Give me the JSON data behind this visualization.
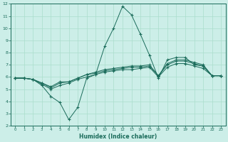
{
  "xlabel": "Humidex (Indice chaleur)",
  "ylabel": "",
  "background_color": "#cceee8",
  "grid_color": "#aaddcc",
  "line_color": "#1a6b5a",
  "x_values": [
    0,
    1,
    2,
    3,
    4,
    5,
    6,
    7,
    8,
    9,
    10,
    11,
    12,
    13,
    14,
    15,
    16,
    17,
    18,
    19,
    20,
    21,
    22,
    23
  ],
  "line1": [
    5.9,
    5.9,
    5.8,
    5.3,
    4.4,
    3.9,
    2.5,
    3.5,
    5.9,
    6.2,
    8.5,
    10.0,
    11.8,
    11.1,
    9.5,
    7.8,
    5.9,
    7.4,
    7.6,
    7.6,
    7.0,
    6.9,
    6.1,
    6.1
  ],
  "line2": [
    5.9,
    5.9,
    5.8,
    5.5,
    5.2,
    5.6,
    5.6,
    5.9,
    6.2,
    6.4,
    6.6,
    6.7,
    6.8,
    6.9,
    6.9,
    7.0,
    6.1,
    7.1,
    7.4,
    7.4,
    7.2,
    7.0,
    6.1,
    6.1
  ],
  "line3": [
    5.9,
    5.9,
    5.8,
    5.5,
    5.1,
    5.5,
    5.6,
    5.9,
    6.2,
    6.3,
    6.5,
    6.6,
    6.7,
    6.8,
    6.8,
    6.9,
    6.1,
    7.0,
    7.3,
    7.3,
    7.1,
    6.9,
    6.1,
    6.1
  ],
  "line4": [
    5.9,
    5.9,
    5.8,
    5.4,
    5.0,
    5.3,
    5.5,
    5.8,
    6.0,
    6.2,
    6.4,
    6.5,
    6.6,
    6.6,
    6.7,
    6.8,
    6.0,
    6.8,
    7.1,
    7.1,
    6.9,
    6.7,
    6.1,
    6.1
  ],
  "xlim": [
    -0.5,
    23.5
  ],
  "ylim": [
    2,
    12
  ],
  "yticks": [
    2,
    3,
    4,
    5,
    6,
    7,
    8,
    9,
    10,
    11,
    12
  ],
  "xticks": [
    0,
    1,
    2,
    3,
    4,
    5,
    6,
    7,
    8,
    9,
    10,
    11,
    12,
    13,
    14,
    15,
    16,
    17,
    18,
    19,
    20,
    21,
    22,
    23
  ]
}
